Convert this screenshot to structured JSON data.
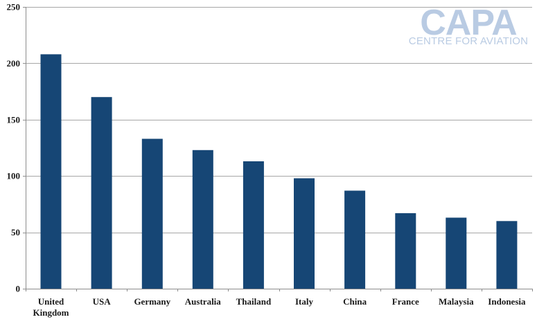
{
  "logo": {
    "main": "CAPA",
    "sub": "CENTRE FOR AVIATION",
    "color": "#b9cbe3"
  },
  "chart_data": {
    "type": "bar",
    "categories": [
      "United Kingdom",
      "USA",
      "Germany",
      "Australia",
      "Thailand",
      "Italy",
      "China",
      "France",
      "Malaysia",
      "Indonesia"
    ],
    "category_lines": [
      [
        "United",
        "Kingdom"
      ],
      [
        "USA"
      ],
      [
        "Germany"
      ],
      [
        "Australia"
      ],
      [
        "Thailand"
      ],
      [
        "Italy"
      ],
      [
        "China"
      ],
      [
        "France"
      ],
      [
        "Malaysia"
      ],
      [
        "Indonesia"
      ]
    ],
    "values": [
      208,
      170,
      133,
      123,
      113,
      98,
      87,
      67,
      63,
      60
    ],
    "ylim": [
      0,
      250
    ],
    "yticks": [
      0,
      50,
      100,
      150,
      200,
      250
    ],
    "grid": true,
    "bar_color": "#164675",
    "grid_color": "#a6a6a6"
  }
}
